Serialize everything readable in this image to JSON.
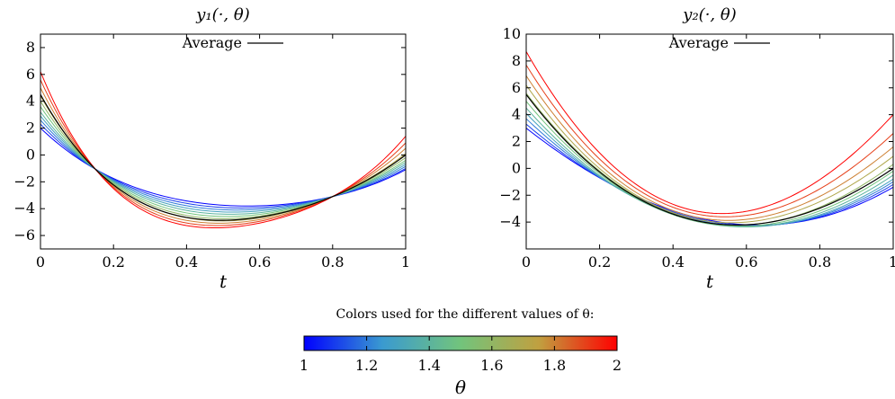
{
  "chart_data": [
    {
      "type": "line",
      "title": "y₁(·, θ)",
      "xlabel": "t",
      "ylabel": "",
      "xlim": [
        0,
        1
      ],
      "ylim": [
        -7,
        9
      ],
      "xticks": [
        "0",
        "0.2",
        "0.4",
        "0.6",
        "0.8",
        "1"
      ],
      "yticks": [
        "−6",
        "−4",
        "−2",
        "0",
        "2",
        "4",
        "6",
        "8"
      ],
      "legend": {
        "label": "Average",
        "placement": "top-center",
        "color": "#000000"
      },
      "color_by": "theta",
      "series": [
        {
          "theta": 1.0,
          "x": [
            0,
            0.15,
            0.55,
            0.8,
            1
          ],
          "y": [
            2.0,
            -1.05,
            -3.8,
            -3.1,
            -1.1
          ]
        },
        {
          "theta": 1.1,
          "x": [
            0,
            0.15,
            0.55,
            0.8,
            1
          ],
          "y": [
            2.3,
            -1.05,
            -3.95,
            -3.1,
            -1.0
          ]
        },
        {
          "theta": 1.2,
          "x": [
            0,
            0.15,
            0.55,
            0.8,
            1
          ],
          "y": [
            2.6,
            -1.05,
            -4.1,
            -3.1,
            -0.85
          ]
        },
        {
          "theta": 1.3,
          "x": [
            0,
            0.15,
            0.55,
            0.8,
            1
          ],
          "y": [
            2.9,
            -1.05,
            -4.25,
            -3.1,
            -0.7
          ]
        },
        {
          "theta": 1.4,
          "x": [
            0,
            0.15,
            0.55,
            0.8,
            1
          ],
          "y": [
            3.2,
            -1.05,
            -4.4,
            -3.1,
            -0.55
          ]
        },
        {
          "theta": 1.5,
          "x": [
            0,
            0.15,
            0.55,
            0.8,
            1
          ],
          "y": [
            3.6,
            -1.05,
            -4.55,
            -3.1,
            -0.4
          ]
        },
        {
          "theta": 1.6,
          "x": [
            0,
            0.15,
            0.55,
            0.8,
            1
          ],
          "y": [
            4.0,
            -1.05,
            -4.7,
            -3.1,
            -0.2
          ]
        },
        {
          "theta": 1.7,
          "x": [
            0,
            0.15,
            0.55,
            0.8,
            1
          ],
          "y": [
            4.4,
            -1.05,
            -4.85,
            -3.1,
            0.1
          ]
        },
        {
          "theta": 1.8,
          "x": [
            0,
            0.15,
            0.55,
            0.8,
            1
          ],
          "y": [
            5.0,
            -1.05,
            -5.0,
            -3.1,
            0.5
          ]
        },
        {
          "theta": 1.9,
          "x": [
            0,
            0.15,
            0.55,
            0.8,
            1
          ],
          "y": [
            5.6,
            -1.05,
            -5.15,
            -3.1,
            0.9
          ]
        },
        {
          "theta": 2.0,
          "x": [
            0,
            0.15,
            0.55,
            0.8,
            1
          ],
          "y": [
            6.2,
            -1.05,
            -5.3,
            -3.1,
            1.4
          ]
        }
      ],
      "average": {
        "x": [
          0,
          0.15,
          0.55,
          0.8,
          1
        ],
        "y": [
          4.5,
          -1.05,
          -4.8,
          -3.1,
          0.0
        ]
      }
    },
    {
      "type": "line",
      "title": "y₂(·, θ)",
      "xlabel": "t",
      "ylabel": "",
      "xlim": [
        0,
        1
      ],
      "ylim": [
        -6,
        10
      ],
      "xticks": [
        "0",
        "0.2",
        "0.4",
        "0.6",
        "0.8",
        "1"
      ],
      "yticks": [
        "−4",
        "−2",
        "0",
        "2",
        "4",
        "6",
        "8",
        "10"
      ],
      "legend": {
        "label": "Average",
        "placement": "top-center",
        "color": "#000000"
      },
      "color_by": "theta",
      "series": [
        {
          "theta": 1.0,
          "x": [
            0,
            0.3,
            0.6,
            1
          ],
          "y": [
            3.0,
            -2.1,
            -4.2,
            -1.4
          ]
        },
        {
          "theta": 1.1,
          "x": [
            0,
            0.3,
            0.6,
            1
          ],
          "y": [
            3.3,
            -2.15,
            -4.25,
            -1.2
          ]
        },
        {
          "theta": 1.2,
          "x": [
            0,
            0.3,
            0.6,
            1
          ],
          "y": [
            3.7,
            -2.2,
            -4.3,
            -1.0
          ]
        },
        {
          "theta": 1.3,
          "x": [
            0,
            0.3,
            0.6,
            1
          ],
          "y": [
            4.1,
            -2.25,
            -4.35,
            -0.8
          ]
        },
        {
          "theta": 1.4,
          "x": [
            0,
            0.3,
            0.6,
            1
          ],
          "y": [
            4.5,
            -2.25,
            -4.35,
            -0.5
          ]
        },
        {
          "theta": 1.5,
          "x": [
            0,
            0.3,
            0.6,
            1
          ],
          "y": [
            5.0,
            -2.2,
            -4.3,
            -0.2
          ]
        },
        {
          "theta": 1.6,
          "x": [
            0,
            0.3,
            0.6,
            1
          ],
          "y": [
            5.6,
            -2.1,
            -4.2,
            0.3
          ]
        },
        {
          "theta": 1.7,
          "x": [
            0,
            0.3,
            0.6,
            1
          ],
          "y": [
            6.2,
            -2.0,
            -4.0,
            0.9
          ]
        },
        {
          "theta": 1.8,
          "x": [
            0,
            0.3,
            0.6,
            1
          ],
          "y": [
            6.9,
            -1.8,
            -3.8,
            1.6
          ]
        },
        {
          "theta": 1.9,
          "x": [
            0,
            0.3,
            0.6,
            1
          ],
          "y": [
            7.7,
            -1.5,
            -3.5,
            2.6
          ]
        },
        {
          "theta": 2.0,
          "x": [
            0,
            0.3,
            0.6,
            1
          ],
          "y": [
            8.7,
            -1.2,
            -3.2,
            4.0
          ]
        }
      ],
      "average": {
        "x": [
          0,
          0.3,
          0.6,
          1
        ],
        "y": [
          5.5,
          -2.15,
          -4.2,
          0.0
        ]
      }
    }
  ],
  "colorbar": {
    "caption": "Colors used for the different values of θ:",
    "label": "θ",
    "range": [
      1,
      2
    ],
    "ticks": [
      "1",
      "1.2",
      "1.4",
      "1.6",
      "1.8",
      "2"
    ],
    "colormap": [
      "#0000ff",
      "#3a9ad0",
      "#72c47c",
      "#c0a040",
      "#ff0000"
    ]
  }
}
